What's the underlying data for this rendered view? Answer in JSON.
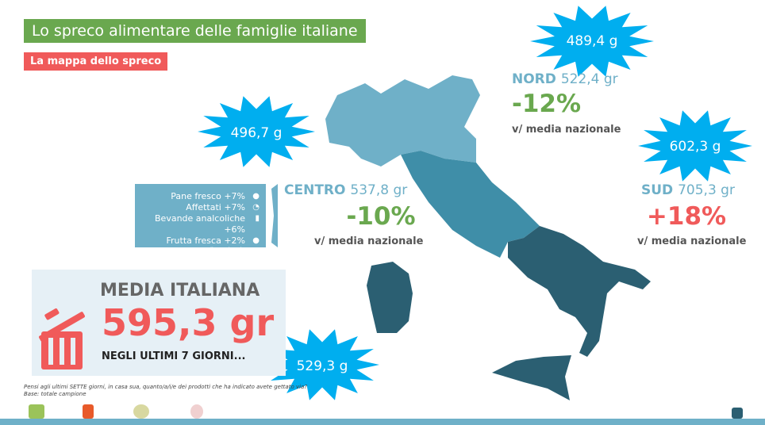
{
  "header": {
    "title": "Lo spreco alimentare delle famiglie italiane",
    "subtitle": "La mappa dello spreco"
  },
  "regions": {
    "nord": {
      "name": "NORD",
      "value": "522,4 gr",
      "pct": "-12%",
      "burst": "489,4 g",
      "note": "v/ media nazionale",
      "color": "#6fb0c8"
    },
    "centro": {
      "name": "CENTRO",
      "value": "537,8 gr",
      "pct": "-10%",
      "burst": "496,7 g",
      "note": "v/ media nazionale",
      "color": "#3f8ea8"
    },
    "sud": {
      "name": "SUD",
      "value": "705,3 gr",
      "pct": "+18%",
      "burst": "602,3 g",
      "note": "v/ media nazionale",
      "color": "#2b5f72"
    },
    "isole": {
      "burst": "529,3 g"
    }
  },
  "legend": {
    "items": [
      {
        "label": "Pane fresco +7%",
        "icon": "bread-icon"
      },
      {
        "label": "Affettati +7%",
        "icon": "cold-cuts-icon"
      },
      {
        "label": "Bevande analcoliche +6%",
        "icon": "bottle-icon"
      },
      {
        "label": "Frutta fresca +2%",
        "icon": "apple-icon"
      }
    ],
    "note": "v/ media nazionale"
  },
  "media": {
    "title": "MEDIA ITALIANA",
    "value": "595,3 gr",
    "period": "NEGLI ULTIMI 7 GIORNI..."
  },
  "footnote": {
    "question": "Pensi agli ultimi SETTE giorni, in casa sua, quanto/a/i/e dei prodotti che ha indicato avete gettato via?",
    "base": "Base: totale campione"
  },
  "colors": {
    "green": "#6aa84f",
    "red": "#f05a5a",
    "burst": "#00aeef",
    "pct_green": "#6aa84f",
    "pct_red": "#f05a5a"
  }
}
